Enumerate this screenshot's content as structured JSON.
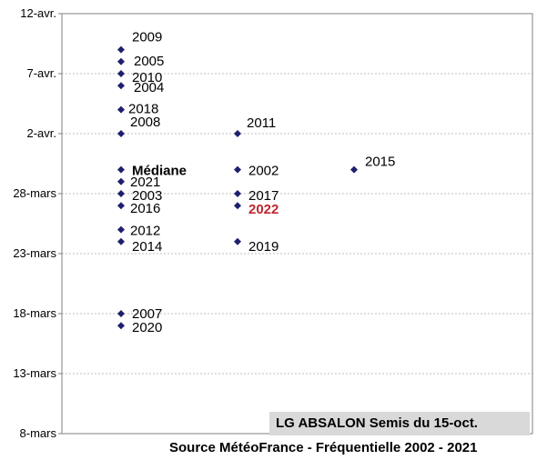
{
  "chart_data": {
    "type": "scatter",
    "x_categories": [
      1,
      2,
      3
    ],
    "y_axis": {
      "min_day": 0,
      "max_day": 35,
      "ticks": [
        {
          "day": 0,
          "label": "8-mars"
        },
        {
          "day": 5,
          "label": "13-mars"
        },
        {
          "day": 10,
          "label": "18-mars"
        },
        {
          "day": 15,
          "label": "23-mars"
        },
        {
          "day": 20,
          "label": "28-mars"
        },
        {
          "day": 25,
          "label": "2-avr."
        },
        {
          "day": 30,
          "label": "7-avr."
        },
        {
          "day": 35,
          "label": "12-avr."
        }
      ]
    },
    "points": [
      {
        "x": 1,
        "date": "09-avr.",
        "day": 32,
        "label": "2009"
      },
      {
        "x": 1,
        "date": "08-avr.",
        "day": 31,
        "label": "2005"
      },
      {
        "x": 1,
        "date": "07-avr.",
        "day": 30,
        "label": "2010"
      },
      {
        "x": 1,
        "date": "06-avr.",
        "day": 29,
        "label": "2004"
      },
      {
        "x": 1,
        "date": "04-avr.",
        "day": 27,
        "label": "2018"
      },
      {
        "x": 1,
        "date": "02-avr.",
        "day": 25,
        "label": "2008"
      },
      {
        "x": 1,
        "date": "30-mars",
        "day": 22,
        "label": "Médiane",
        "style": "bold"
      },
      {
        "x": 1,
        "date": "29-mars",
        "day": 21,
        "label": "2021"
      },
      {
        "x": 1,
        "date": "28-mars",
        "day": 20,
        "label": "2003"
      },
      {
        "x": 1,
        "date": "27-mars",
        "day": 19,
        "label": "2016"
      },
      {
        "x": 1,
        "date": "25-mars",
        "day": 17,
        "label": "2012"
      },
      {
        "x": 1,
        "date": "24-mars",
        "day": 16,
        "label": "2014"
      },
      {
        "x": 1,
        "date": "18-mars",
        "day": 10,
        "label": "2007"
      },
      {
        "x": 1,
        "date": "17-mars",
        "day": 9,
        "label": "2020"
      },
      {
        "x": 2,
        "date": "02-avr.",
        "day": 25,
        "label": "2011"
      },
      {
        "x": 2,
        "date": "30-mars",
        "day": 22,
        "label": "2002"
      },
      {
        "x": 2,
        "date": "28-mars",
        "day": 20,
        "label": "2017"
      },
      {
        "x": 2,
        "date": "27-mars",
        "day": 19,
        "label": "2022",
        "style": "highlight"
      },
      {
        "x": 2,
        "date": "24-mars",
        "day": 16,
        "label": "2019"
      },
      {
        "x": 3,
        "date": "30-mars",
        "day": 22,
        "label": "2015"
      }
    ],
    "marker_color": "#1f1f6e",
    "highlight_color": "#c0262d",
    "grid": true,
    "annotation": "LG ABSALON Semis du  15-oct.",
    "source": "Source MétéoFrance - Fréquentielle  2002 - 2021"
  }
}
